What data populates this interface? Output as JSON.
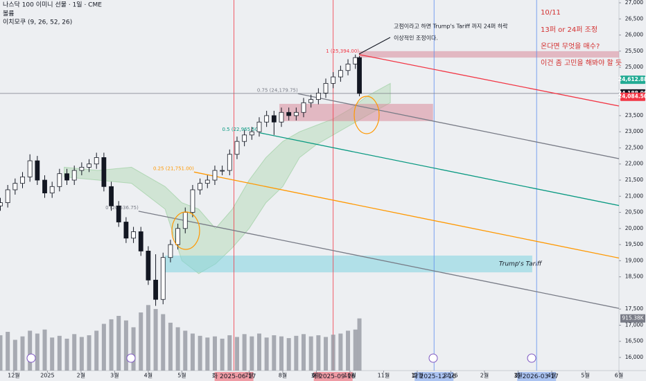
{
  "chart_data": {
    "type": "candlestick",
    "title": "나스닥 100 이미니 선물 · 1일 · CME",
    "indicators": [
      "볼륨",
      "이치모쿠 (9, 26, 52, 26)"
    ],
    "xlim": [
      -0.41,
      18
    ],
    "ylim": [
      15592,
      27086
    ],
    "volume_ylim": [
      0,
      6500
    ],
    "x": [
      -0.4,
      -0.18,
      0.04,
      0.26,
      0.48,
      0.7,
      0.92,
      1.14,
      1.36,
      1.58,
      1.8,
      2.02,
      2.24,
      2.46,
      2.68,
      2.9,
      3.12,
      3.34,
      3.56,
      3.78,
      4.0,
      4.22,
      4.44,
      4.66,
      4.88,
      5.1,
      5.32,
      5.54,
      5.76,
      5.98,
      6.2,
      6.42,
      6.64,
      6.86,
      7.08,
      7.3,
      7.52,
      7.74,
      7.96,
      8.18,
      8.4,
      8.62,
      8.84,
      9.06,
      9.28,
      9.5,
      9.72,
      9.94,
      10.16,
      10.28
    ],
    "candles": [
      [
        20700,
        20950,
        20550,
        20800
      ],
      [
        20800,
        21350,
        20650,
        21200
      ],
      [
        21200,
        21550,
        21050,
        21400
      ],
      [
        21400,
        21750,
        21250,
        21600
      ],
      [
        21600,
        22300,
        21450,
        22100
      ],
      [
        22100,
        22250,
        21350,
        21500
      ],
      [
        21500,
        21650,
        20950,
        21100
      ],
      [
        21100,
        21450,
        20950,
        21300
      ],
      [
        21300,
        21850,
        21150,
        21700
      ],
      [
        21700,
        21850,
        21350,
        21500
      ],
      [
        21500,
        21950,
        21350,
        21800
      ],
      [
        21800,
        22050,
        21650,
        21900
      ],
      [
        21900,
        22150,
        21750,
        22000
      ],
      [
        22000,
        22350,
        21850,
        22200
      ],
      [
        22200,
        22350,
        21150,
        21300
      ],
      [
        21300,
        21450,
        20550,
        20700
      ],
      [
        20700,
        20850,
        20050,
        20200
      ],
      [
        20200,
        20350,
        19550,
        19700
      ],
      [
        19700,
        20050,
        19550,
        19900
      ],
      [
        19900,
        20050,
        19150,
        19300
      ],
      [
        19300,
        19450,
        18250,
        18400
      ],
      [
        18400,
        19200,
        17600,
        17800
      ],
      [
        17800,
        19250,
        17650,
        19100
      ],
      [
        19100,
        19650,
        18950,
        19500
      ],
      [
        19500,
        20150,
        19350,
        20000
      ],
      [
        20000,
        20650,
        19850,
        20500
      ],
      [
        20500,
        21350,
        20350,
        21200
      ],
      [
        21200,
        21550,
        21050,
        21400
      ],
      [
        21400,
        21650,
        21250,
        21500
      ],
      [
        21500,
        21950,
        21350,
        21800
      ],
      [
        21800,
        21950,
        21650,
        21800
      ],
      [
        21800,
        22450,
        21650,
        22300
      ],
      [
        22300,
        22850,
        22150,
        22700
      ],
      [
        22700,
        23050,
        22550,
        22900
      ],
      [
        22900,
        23150,
        22750,
        23000
      ],
      [
        23000,
        23450,
        22850,
        23300
      ],
      [
        23300,
        23650,
        23150,
        23500
      ],
      [
        23500,
        23650,
        22900,
        23300
      ],
      [
        23300,
        23750,
        23150,
        23600
      ],
      [
        23600,
        23750,
        23350,
        23500
      ],
      [
        23500,
        23750,
        23350,
        23600
      ],
      [
        23600,
        24050,
        23450,
        23900
      ],
      [
        23900,
        24150,
        23750,
        24000
      ],
      [
        24000,
        24350,
        23850,
        24200
      ],
      [
        24200,
        24650,
        24050,
        24500
      ],
      [
        24500,
        24850,
        24350,
        24700
      ],
      [
        24700,
        25050,
        24550,
        24900
      ],
      [
        24900,
        25250,
        24750,
        25100
      ],
      [
        25100,
        25394,
        24950,
        25300
      ],
      [
        25300,
        25350,
        24100,
        24188
      ]
    ],
    "candle_color": "#131722",
    "volume": [
      620,
      680,
      540,
      600,
      700,
      650,
      720,
      580,
      610,
      560,
      640,
      590,
      620,
      700,
      820,
      900,
      960,
      880,
      760,
      1020,
      1150,
      1080,
      990,
      840,
      760,
      700,
      650,
      610,
      580,
      600,
      560,
      620,
      590,
      640,
      600,
      650,
      580,
      620,
      600,
      570,
      610,
      640,
      600,
      620,
      590,
      630,
      650,
      700,
      720,
      915.38
    ],
    "volume_color": "#9598a1",
    "cloud": {
      "x": [
        1.5,
        2.5,
        3.5,
        4.5,
        5.0,
        5.5,
        6.0,
        6.5,
        7.0,
        7.5,
        8.0,
        8.5,
        9.0,
        9.5,
        10.0,
        10.5,
        11.2
      ],
      "upper": [
        21900,
        21800,
        21900,
        21300,
        20800,
        20600,
        20000,
        20600,
        21500,
        22200,
        22700,
        23000,
        23200,
        23400,
        23700,
        24100,
        24500
      ],
      "lower": [
        21600,
        21500,
        21400,
        20600,
        19000,
        18600,
        18900,
        19400,
        20000,
        20800,
        21300,
        22200,
        22600,
        22900,
        23200,
        23500,
        23900
      ],
      "color": "#4caf50"
    },
    "current_price": 24188,
    "yticks": [
      {
        "value": 16000,
        "label": "16,000"
      },
      {
        "value": 16500,
        "label": "16,500"
      },
      {
        "value": 17000,
        "label": "17,000"
      },
      {
        "value": 17500,
        "label": "17,500"
      },
      {
        "value": 18500,
        "label": "18,500"
      },
      {
        "value": 19000,
        "label": "19,000"
      },
      {
        "value": 19500,
        "label": "19,500"
      },
      {
        "value": 20000,
        "label": "20,000"
      },
      {
        "value": 20500,
        "label": "20,500"
      },
      {
        "value": 21000,
        "label": "21,000"
      },
      {
        "value": 21500,
        "label": "21,500"
      },
      {
        "value": 22000,
        "label": "22,000"
      },
      {
        "value": 22500,
        "label": "22,500"
      },
      {
        "value": 23000,
        "label": "23,000"
      },
      {
        "value": 23500,
        "label": "23,500"
      },
      {
        "value": 25000,
        "label": "25,000"
      },
      {
        "value": 25500,
        "label": "25,500"
      },
      {
        "value": 26000,
        "label": "26,000"
      },
      {
        "value": 26500,
        "label": "26,500"
      },
      {
        "value": 27000,
        "label": "27,000"
      }
    ],
    "xticks": [
      {
        "value": 0,
        "label": "12월"
      },
      {
        "value": 1,
        "label": "2025"
      },
      {
        "value": 2,
        "label": "2월"
      },
      {
        "value": 3,
        "label": "3월"
      },
      {
        "value": 4,
        "label": "4월"
      },
      {
        "value": 5,
        "label": "5월"
      },
      {
        "value": 7,
        "label": "7월"
      },
      {
        "value": 8,
        "label": "8월"
      },
      {
        "value": 9,
        "label": "9월"
      },
      {
        "value": 10,
        "label": "10월"
      },
      {
        "value": 11,
        "label": "11월"
      },
      {
        "value": 12,
        "label": "12월"
      },
      {
        "value": 13,
        "label": "2026"
      },
      {
        "value": 14,
        "label": "2월"
      },
      {
        "value": 15,
        "label": "3월"
      },
      {
        "value": 16,
        "label": "4월"
      },
      {
        "value": 17,
        "label": "5월"
      },
      {
        "value": 18,
        "label": "6월"
      }
    ],
    "price_labels": [
      {
        "value": 24612.88,
        "label": "24,612.88",
        "color": "#22ab94"
      },
      {
        "value": 24188,
        "label": "24,188.00",
        "color": "#131722"
      },
      {
        "value": 24084.5,
        "label": "24,084.50",
        "color": "#f23645"
      }
    ],
    "volume_label": {
      "value": 915.38,
      "label": "915.38K"
    },
    "vertical_lines": [
      {
        "x": 6.55,
        "label": "화 2025-06-17",
        "color": "#f23645"
      },
      {
        "x": 9.5,
        "label": "화 2025-09-16",
        "color": "#f23645"
      },
      {
        "x": 12.5,
        "label": "화 2025-12-16",
        "color": "#5b8def"
      },
      {
        "x": 15.55,
        "label": "화 2026-03-17",
        "color": "#5b8def"
      }
    ],
    "zones": [
      {
        "x": [
          10.27,
          18
        ],
        "y": [
          25300,
          25500
        ],
        "color": "#d88a9a"
      },
      {
        "x": [
          7.9,
          12.47
        ],
        "y": [
          23330,
          23865
        ],
        "color": "#d88a9a"
      },
      {
        "x": [
          4.49,
          15.42
        ],
        "y": [
          18640,
          19160
        ],
        "color": "#7fd3e0",
        "label": "Trump's Tariff"
      }
    ],
    "fib_lines": [
      {
        "label": "1 (25,394.00)",
        "start": [
          10.27,
          25394
        ],
        "end": [
          18,
          23799
        ],
        "color": "#f23645"
      },
      {
        "label": "0.75 (24,179.75)",
        "start": [
          8.45,
          24179.75
        ],
        "end": [
          18,
          22165
        ],
        "color": "#787b86"
      },
      {
        "label": "0.5 (22,965.50)",
        "start": [
          7.32,
          22965.5
        ],
        "end": [
          18,
          20712
        ],
        "color": "#089981"
      },
      {
        "label": "0.25 (21,751.00)",
        "start": [
          5.36,
          21751
        ],
        "end": [
          18,
          19084
        ],
        "color": "#ff9800"
      },
      {
        "label": "0 (20,536.75)",
        "start": [
          3.71,
          20536.75
        ],
        "end": [
          18,
          17522
        ],
        "color": "#787b86"
      }
    ],
    "callout": [
      "고점이라고 하면 Trump's Tariff 까지 24퍼 하락",
      "이상적인 조정이다."
    ],
    "notes": [
      "10/11",
      "13퍼 or 24퍼 조정",
      "온다면 무엇을 매수?",
      "이건 좀 고민을 해봐야 할 듯"
    ]
  }
}
